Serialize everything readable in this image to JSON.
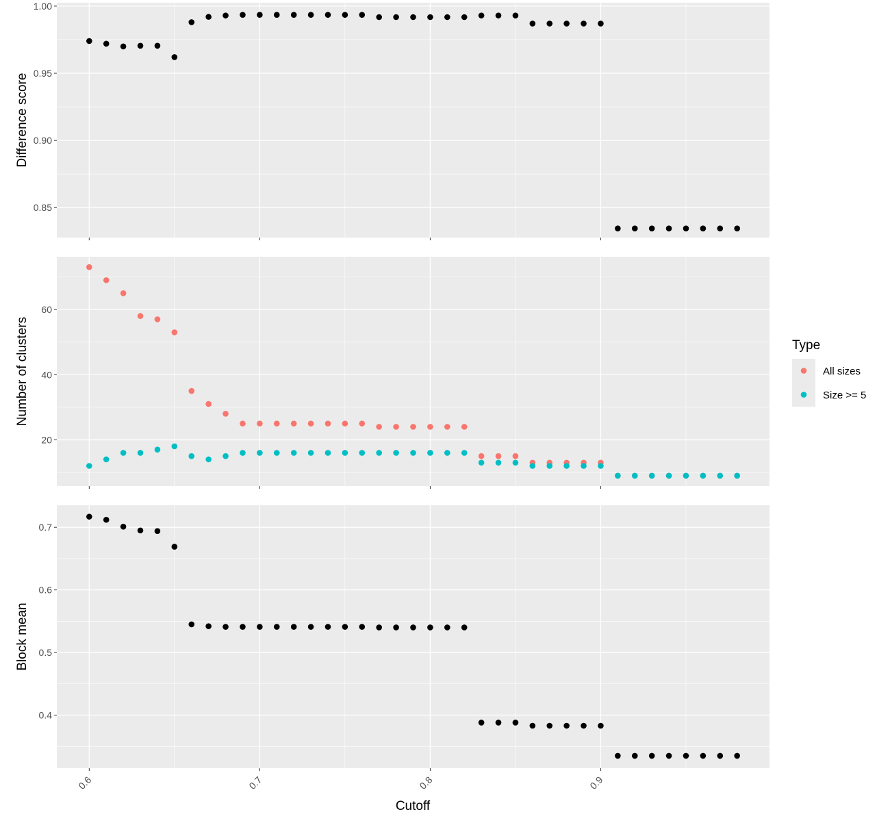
{
  "chart_data": {
    "type": "scatter",
    "xlabel": "Cutoff",
    "x_ticks": [
      "0.6",
      "0.7",
      "0.8",
      "0.9"
    ],
    "xlim": [
      0.581,
      0.999
    ],
    "legend": {
      "title": "Type",
      "position": "right",
      "entries": [
        {
          "label": "All sizes",
          "color": "#F8766D"
        },
        {
          "label": "Size >= 5",
          "color": "#00BFC4"
        }
      ]
    },
    "panels": [
      {
        "id": "difference",
        "ylabel": "Difference score",
        "ylim": [
          0.8277,
          1.0025
        ],
        "y_ticks": [
          0.85,
          0.9,
          0.95,
          1.0
        ],
        "y_tick_labels": [
          "0.85",
          "0.90",
          "0.95",
          "1.00"
        ],
        "series": [
          {
            "color": "#000000",
            "x": [
              0.6,
              0.61,
              0.62,
              0.63,
              0.64,
              0.65,
              0.66,
              0.67,
              0.68,
              0.69,
              0.7,
              0.71,
              0.72,
              0.73,
              0.74,
              0.75,
              0.76,
              0.77,
              0.78,
              0.79,
              0.8,
              0.81,
              0.82,
              0.83,
              0.84,
              0.85,
              0.86,
              0.87,
              0.88,
              0.89,
              0.9,
              0.91,
              0.92,
              0.93,
              0.94,
              0.95,
              0.96,
              0.97,
              0.98
            ],
            "y": [
              0.974,
              0.972,
              0.97,
              0.9705,
              0.9705,
              0.962,
              0.988,
              0.992,
              0.993,
              0.9935,
              0.9935,
              0.9935,
              0.9935,
              0.9935,
              0.9935,
              0.9935,
              0.9935,
              0.9918,
              0.9918,
              0.9918,
              0.9918,
              0.9918,
              0.9918,
              0.993,
              0.993,
              0.993,
              0.987,
              0.987,
              0.987,
              0.987,
              0.987,
              0.8345,
              0.8345,
              0.8345,
              0.8345,
              0.8345,
              0.8345,
              0.8345,
              0.8345
            ]
          }
        ]
      },
      {
        "id": "clusters",
        "ylabel": "Number of clusters",
        "ylim": [
          5.8,
          76.2
        ],
        "y_ticks": [
          20,
          40,
          60
        ],
        "y_tick_labels": [
          "20",
          "40",
          "60"
        ],
        "series": [
          {
            "name": "All sizes",
            "color": "#F8766D",
            "x": [
              0.6,
              0.61,
              0.62,
              0.63,
              0.64,
              0.65,
              0.66,
              0.67,
              0.68,
              0.69,
              0.7,
              0.71,
              0.72,
              0.73,
              0.74,
              0.75,
              0.76,
              0.77,
              0.78,
              0.79,
              0.8,
              0.81,
              0.82,
              0.83,
              0.84,
              0.85,
              0.86,
              0.87,
              0.88,
              0.89,
              0.9,
              0.91,
              0.92,
              0.93,
              0.94,
              0.95,
              0.96,
              0.97,
              0.98
            ],
            "y": [
              73,
              69,
              65,
              58,
              57,
              53,
              35,
              31,
              28,
              25,
              25,
              25,
              25,
              25,
              25,
              25,
              25,
              24,
              24,
              24,
              24,
              24,
              24,
              15,
              15,
              15,
              13,
              13,
              13,
              13,
              13,
              9,
              9,
              9,
              9,
              9,
              9,
              9,
              9
            ]
          },
          {
            "name": "Size >= 5",
            "color": "#00BFC4",
            "x": [
              0.6,
              0.61,
              0.62,
              0.63,
              0.64,
              0.65,
              0.66,
              0.67,
              0.68,
              0.69,
              0.7,
              0.71,
              0.72,
              0.73,
              0.74,
              0.75,
              0.76,
              0.77,
              0.78,
              0.79,
              0.8,
              0.81,
              0.82,
              0.83,
              0.84,
              0.85,
              0.86,
              0.87,
              0.88,
              0.89,
              0.9,
              0.91,
              0.92,
              0.93,
              0.94,
              0.95,
              0.96,
              0.97,
              0.98
            ],
            "y": [
              12,
              14,
              16,
              16,
              17,
              18,
              15,
              14,
              15,
              16,
              16,
              16,
              16,
              16,
              16,
              16,
              16,
              16,
              16,
              16,
              16,
              16,
              16,
              13,
              13,
              13,
              12,
              12,
              12,
              12,
              12,
              9,
              9,
              9,
              9,
              9,
              9,
              9,
              9
            ]
          }
        ]
      },
      {
        "id": "block",
        "ylabel": "Block mean",
        "ylim": [
          0.3152,
          0.7352
        ],
        "y_ticks": [
          0.4,
          0.5,
          0.6,
          0.7
        ],
        "y_tick_labels": [
          "0.4",
          "0.5",
          "0.6",
          "0.7"
        ],
        "series": [
          {
            "color": "#000000",
            "x": [
              0.6,
              0.61,
              0.62,
              0.63,
              0.64,
              0.65,
              0.66,
              0.67,
              0.68,
              0.69,
              0.7,
              0.71,
              0.72,
              0.73,
              0.74,
              0.75,
              0.76,
              0.77,
              0.78,
              0.79,
              0.8,
              0.81,
              0.82,
              0.83,
              0.84,
              0.85,
              0.86,
              0.87,
              0.88,
              0.89,
              0.9,
              0.91,
              0.92,
              0.93,
              0.94,
              0.95,
              0.96,
              0.97,
              0.98
            ],
            "y": [
              0.717,
              0.712,
              0.701,
              0.695,
              0.694,
              0.669,
              0.545,
              0.542,
              0.541,
              0.541,
              0.541,
              0.541,
              0.541,
              0.541,
              0.541,
              0.541,
              0.541,
              0.54,
              0.54,
              0.54,
              0.54,
              0.54,
              0.54,
              0.388,
              0.388,
              0.388,
              0.383,
              0.383,
              0.383,
              0.383,
              0.383,
              0.335,
              0.335,
              0.335,
              0.335,
              0.335,
              0.335,
              0.335,
              0.335
            ]
          }
        ]
      }
    ]
  }
}
